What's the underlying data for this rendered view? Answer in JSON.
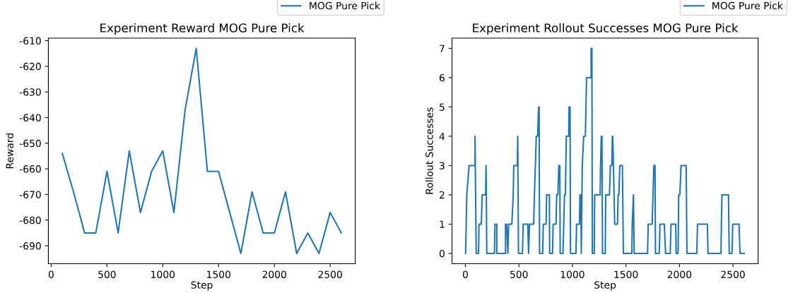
{
  "chart_data": [
    {
      "type": "line",
      "title": "Experiment Reward MOG Pure Pick",
      "xlabel": "Step",
      "ylabel": "Reward",
      "x": [
        100,
        200,
        300,
        400,
        500,
        600,
        700,
        800,
        900,
        1000,
        1100,
        1200,
        1300,
        1400,
        1500,
        1600,
        1700,
        1800,
        1900,
        2000,
        2100,
        2200,
        2300,
        2400,
        2500,
        2600
      ],
      "series": [
        {
          "name": "MOG Pure Pick",
          "color": "#1f77b4",
          "values": [
            -654,
            -669,
            -685,
            -685,
            -661,
            -685,
            -653,
            -677,
            -661,
            -653,
            -677,
            -637,
            -613,
            -661,
            -661,
            -677,
            -693,
            -669,
            -685,
            -685,
            -669,
            -693,
            -685,
            -693,
            -677,
            -685
          ]
        }
      ],
      "xlim": [
        -25,
        2725
      ],
      "xticks": [
        0,
        500,
        1000,
        1500,
        2000,
        2500
      ],
      "ylim": [
        -697,
        -609
      ],
      "yticks": [
        -690,
        -680,
        -670,
        -660,
        -650,
        -640,
        -630,
        -620,
        -610
      ],
      "grid": false,
      "legend": "top right",
      "marker": "none",
      "line_style": "solid"
    },
    {
      "type": "line",
      "title": "Experiment Rollout Successes MOG Pure Pick",
      "xlabel": "Step",
      "ylabel": "Rollout Successes",
      "x": [
        2,
        13,
        35,
        90,
        90,
        101,
        123,
        127,
        149,
        156,
        189,
        193,
        200,
        272,
        276,
        294,
        294,
        375,
        375,
        386,
        397,
        404,
        434,
        447,
        452,
        485,
        489,
        496,
        533,
        540,
        583,
        590,
        599,
        638,
        645,
        654,
        662,
        675,
        684,
        689,
        693,
        722,
        728,
        754,
        759,
        785,
        787,
        814,
        820,
        847,
        853,
        864,
        873,
        882,
        886,
        912,
        926,
        934,
        943,
        965,
        969,
        978,
        982,
        1033,
        1039,
        1066,
        1070,
        1079,
        1083,
        1092,
        1105,
        1121,
        1132,
        1175,
        1175,
        1182,
        1186,
        1204,
        1208,
        1259,
        1263,
        1270,
        1276,
        1281,
        1307,
        1311,
        1346,
        1355,
        1368,
        1373,
        1377,
        1395,
        1421,
        1427,
        1434,
        1443,
        1467,
        1476,
        1555,
        1559,
        1570,
        1577,
        1702,
        1708,
        1745,
        1761,
        1772,
        1776,
        1811,
        1818,
        1859,
        1870,
        1914,
        1921,
        1965,
        1969,
        1987,
        1993,
        2004,
        2015,
        2063,
        2070,
        2162,
        2169,
        2261,
        2267,
        2388,
        2392,
        2397,
        2458,
        2465,
        2491,
        2498,
        2557,
        2566,
        2605
      ],
      "series": [
        {
          "name": "MOG Pure Pick",
          "color": "#1f77b4",
          "values": [
            0,
            2,
            3,
            3,
            4,
            0,
            0,
            1,
            1,
            2,
            2,
            3,
            0,
            0,
            1,
            1,
            0,
            0,
            1,
            1,
            0,
            1,
            1,
            2,
            3,
            3,
            4,
            0,
            0,
            1,
            1,
            0,
            1,
            1,
            2,
            3,
            4,
            4,
            5,
            5,
            0,
            0,
            1,
            1,
            2,
            2,
            0,
            0,
            1,
            1,
            2,
            2,
            3,
            3,
            0,
            0,
            2,
            2,
            4,
            4,
            5,
            5,
            0,
            0,
            1,
            1,
            2,
            2,
            0,
            3,
            4,
            4,
            6,
            6,
            7,
            7,
            0,
            0,
            2,
            2,
            3,
            4,
            4,
            0,
            0,
            2,
            2,
            3,
            3,
            4,
            4,
            1,
            1,
            2,
            2,
            3,
            3,
            0,
            0,
            1,
            2,
            0,
            0,
            1,
            1,
            3,
            3,
            0,
            0,
            1,
            1,
            0,
            0,
            1,
            1,
            0,
            0,
            2,
            2,
            3,
            3,
            0,
            0,
            1,
            1,
            0,
            0,
            1,
            2,
            2,
            0,
            0,
            1,
            1,
            0,
            0
          ]
        }
      ],
      "xlim": [
        -125,
        2735
      ],
      "xticks": [
        0,
        500,
        1000,
        1500,
        2000,
        2500
      ],
      "ylim": [
        -0.35,
        7.35
      ],
      "yticks": [
        0,
        1,
        2,
        3,
        4,
        5,
        6,
        7
      ],
      "grid": false,
      "legend": "top right",
      "marker": "none",
      "line_style": "solid"
    }
  ]
}
